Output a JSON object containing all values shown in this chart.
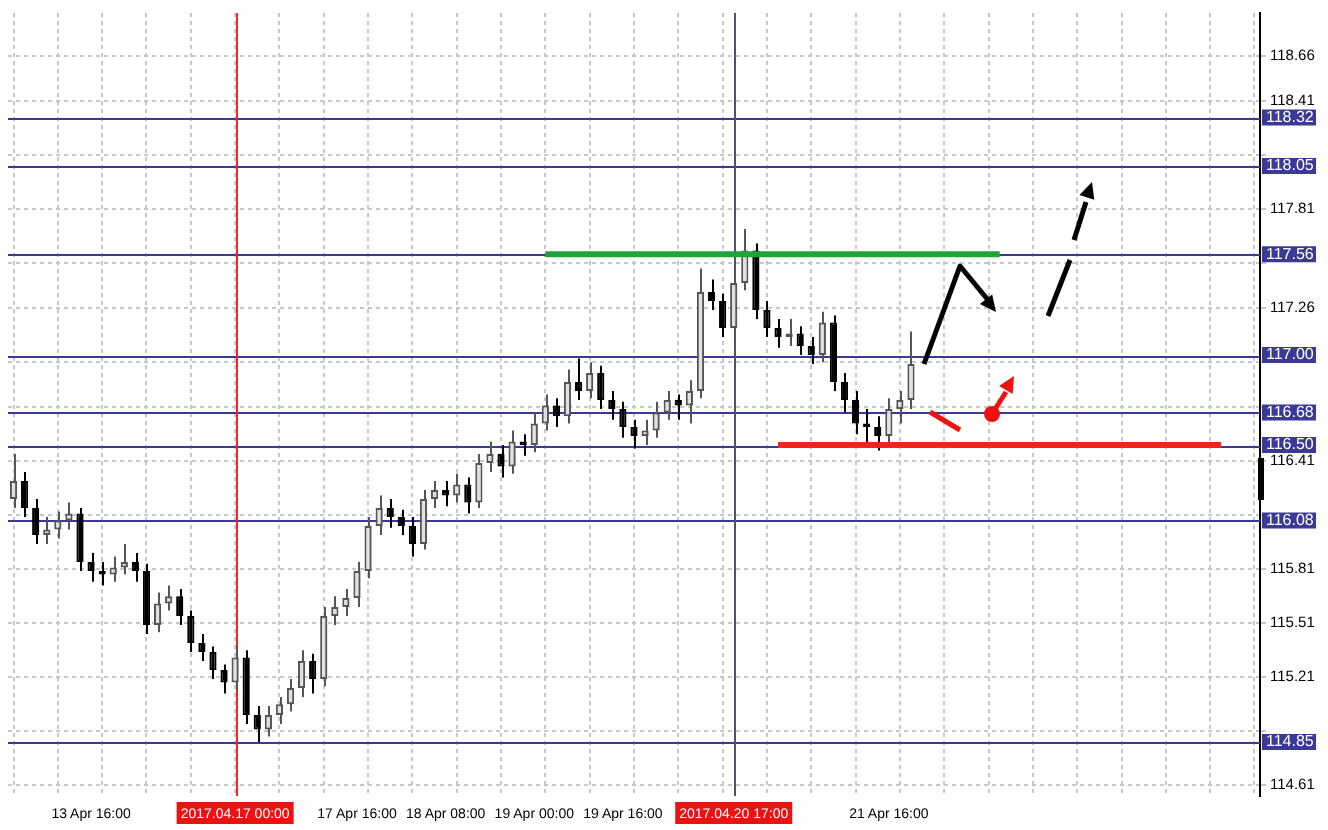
{
  "chart_data": {
    "type": "candlestick",
    "colors": [
      "#555555",
      "#000000",
      "#000000",
      "#555555",
      "#555555",
      "#555555",
      "#000000",
      "#000000",
      "#000000",
      "#555555",
      "#555555",
      "#000000",
      "#000000",
      "#555555",
      "#555555",
      "#000000",
      "#000000",
      "#000000",
      "#000000",
      "#000000",
      "#555555",
      "#000000",
      "#000000",
      "#555555",
      "#555555",
      "#555555",
      "#555555",
      "#000000",
      "#555555",
      "#555555",
      "#555555",
      "#555555",
      "#555555",
      "#555555",
      "#000000",
      "#000000",
      "#000000",
      "#555555",
      "#555555",
      "#000000",
      "#555555",
      "#000000",
      "#555555",
      "#555555",
      "#000000",
      "#555555",
      "#000000",
      "#555555",
      "#555555",
      "#000000",
      "#555555",
      "#000000",
      "#555555",
      "#000000",
      "#000000",
      "#000000",
      "#000000",
      "#555555",
      "#555555",
      "#555555",
      "#000000",
      "#555555",
      "#555555",
      "#000000",
      "#000000",
      "#555555",
      "#555555",
      "#000000",
      "#000000",
      "#000000",
      "#555555",
      "#000000",
      "#000000",
      "#555555",
      "#000000",
      "#000000",
      "#000000",
      "#000000",
      "#000000",
      "#555555",
      "#555555",
      "#555555",
      null,
      null,
      null,
      null,
      null,
      null,
      null,
      null,
      null,
      null,
      null,
      null,
      null,
      null,
      null,
      null,
      null,
      null,
      null,
      null,
      null,
      null,
      null,
      null,
      null,
      null,
      null,
      null,
      null,
      null,
      null
    ],
    "categories": [
      null,
      null,
      null,
      null,
      null,
      null,
      null,
      "13 Apr 16:00",
      null,
      null,
      null,
      null,
      null,
      null,
      null,
      null,
      null,
      null,
      null,
      null,
      "2017.04.17 00:00",
      null,
      null,
      null,
      null,
      null,
      null,
      null,
      null,
      null,
      null,
      "17 Apr 16:00",
      null,
      null,
      null,
      null,
      null,
      null,
      null,
      "18 Apr 08:00",
      null,
      null,
      null,
      null,
      null,
      null,
      null,
      "19 Apr 00:00",
      null,
      null,
      null,
      null,
      null,
      null,
      null,
      "19 Apr 16:00",
      null,
      null,
      null,
      null,
      null,
      null,
      null,
      null,
      null,
      "2017.04.20 17:00",
      null,
      null,
      null,
      null,
      null,
      null,
      null,
      null,
      null,
      null,
      null,
      null,
      null,
      "21 Apr 16:00",
      null,
      null,
      null,
      null,
      null,
      null,
      null,
      null,
      null,
      null,
      null,
      null,
      null,
      null,
      null,
      null,
      null,
      null,
      null,
      null,
      null,
      null,
      null,
      null,
      null,
      null,
      null,
      null,
      null,
      null,
      null,
      null,
      null
    ],
    "ohlc": [
      [
        116.2,
        116.45,
        116.15,
        116.3
      ],
      [
        116.3,
        116.35,
        116.1,
        116.15
      ],
      [
        116.15,
        116.2,
        115.95,
        116.0
      ],
      [
        116.0,
        116.1,
        115.95,
        116.03
      ],
      [
        116.03,
        116.13,
        115.98,
        116.08
      ],
      [
        116.08,
        116.18,
        116.03,
        116.12
      ],
      [
        116.12,
        116.15,
        115.8,
        115.85
      ],
      [
        115.85,
        115.9,
        115.74,
        115.8
      ],
      [
        115.8,
        115.85,
        115.72,
        115.78
      ],
      [
        115.78,
        115.88,
        115.74,
        115.82
      ],
      [
        115.82,
        115.95,
        115.78,
        115.85
      ],
      [
        115.85,
        115.9,
        115.74,
        115.8
      ],
      [
        115.8,
        115.84,
        115.45,
        115.5
      ],
      [
        115.5,
        115.68,
        115.46,
        115.62
      ],
      [
        115.62,
        115.72,
        115.58,
        115.66
      ],
      [
        115.66,
        115.7,
        115.5,
        115.55
      ],
      [
        115.55,
        115.58,
        115.35,
        115.4
      ],
      [
        115.4,
        115.45,
        115.3,
        115.35
      ],
      [
        115.35,
        115.38,
        115.2,
        115.25
      ],
      [
        115.25,
        115.28,
        115.12,
        115.18
      ],
      [
        115.18,
        115.38,
        115.14,
        115.32
      ],
      [
        115.32,
        115.36,
        114.95,
        115.0
      ],
      [
        115.0,
        115.05,
        114.85,
        114.92
      ],
      [
        114.92,
        115.05,
        114.88,
        115.0
      ],
      [
        115.0,
        115.1,
        114.95,
        115.06
      ],
      [
        115.06,
        115.2,
        115.02,
        115.15
      ],
      [
        115.15,
        115.36,
        115.1,
        115.3
      ],
      [
        115.3,
        115.34,
        115.12,
        115.2
      ],
      [
        115.2,
        115.6,
        115.16,
        115.55
      ],
      [
        115.55,
        115.66,
        115.5,
        115.6
      ],
      [
        115.6,
        115.7,
        115.55,
        115.65
      ],
      [
        115.65,
        115.85,
        115.6,
        115.8
      ],
      [
        115.8,
        116.1,
        115.76,
        116.05
      ],
      [
        116.05,
        116.22,
        116.0,
        116.15
      ],
      [
        116.15,
        116.2,
        116.04,
        116.1
      ],
      [
        116.1,
        116.14,
        116.0,
        116.05
      ],
      [
        116.05,
        116.1,
        115.88,
        115.95
      ],
      [
        115.95,
        116.25,
        115.92,
        116.2
      ],
      [
        116.2,
        116.3,
        116.15,
        116.25
      ],
      [
        116.25,
        116.3,
        116.16,
        116.22
      ],
      [
        116.22,
        116.34,
        116.18,
        116.28
      ],
      [
        116.28,
        116.32,
        116.12,
        116.18
      ],
      [
        116.18,
        116.45,
        116.15,
        116.4
      ],
      [
        116.4,
        116.52,
        116.35,
        116.45
      ],
      [
        116.45,
        116.5,
        116.32,
        116.38
      ],
      [
        116.38,
        116.58,
        116.34,
        116.52
      ],
      [
        116.52,
        116.56,
        116.44,
        116.5
      ],
      [
        116.5,
        116.68,
        116.46,
        116.62
      ],
      [
        116.62,
        116.78,
        116.58,
        116.72
      ],
      [
        116.72,
        116.76,
        116.6,
        116.66
      ],
      [
        116.66,
        116.92,
        116.62,
        116.85
      ],
      [
        116.85,
        116.98,
        116.75,
        116.8
      ],
      [
        116.8,
        116.96,
        116.76,
        116.9
      ],
      [
        116.9,
        116.94,
        116.7,
        116.75
      ],
      [
        116.75,
        116.8,
        116.64,
        116.7
      ],
      [
        116.7,
        116.74,
        116.54,
        116.6
      ],
      [
        116.6,
        116.64,
        116.48,
        116.55
      ],
      [
        116.55,
        116.64,
        116.5,
        116.58
      ],
      [
        116.58,
        116.74,
        116.54,
        116.68
      ],
      [
        116.68,
        116.8,
        116.64,
        116.75
      ],
      [
        116.75,
        116.78,
        116.64,
        116.72
      ],
      [
        116.72,
        116.86,
        116.62,
        116.8
      ],
      [
        116.8,
        117.48,
        116.76,
        117.35
      ],
      [
        117.35,
        117.42,
        117.25,
        117.3
      ],
      [
        117.3,
        117.34,
        117.1,
        117.15
      ],
      [
        117.15,
        117.5,
        117.1,
        117.4
      ],
      [
        117.4,
        117.7,
        117.36,
        117.58
      ],
      [
        117.58,
        117.62,
        117.2,
        117.25
      ],
      [
        117.25,
        117.3,
        117.1,
        117.15
      ],
      [
        117.15,
        117.2,
        117.04,
        117.1
      ],
      [
        117.1,
        117.2,
        117.05,
        117.12
      ],
      [
        117.12,
        117.16,
        117.0,
        117.05
      ],
      [
        117.05,
        117.1,
        116.95,
        117.0
      ],
      [
        117.0,
        117.24,
        116.96,
        117.18
      ],
      [
        117.18,
        117.22,
        116.8,
        116.85
      ],
      [
        116.85,
        116.9,
        116.68,
        116.75
      ],
      [
        116.75,
        116.8,
        116.56,
        116.62
      ],
      [
        116.62,
        116.7,
        116.5,
        116.6
      ],
      [
        116.6,
        116.66,
        116.47,
        116.55
      ],
      [
        116.55,
        116.76,
        116.5,
        116.7
      ],
      [
        116.7,
        116.8,
        116.62,
        116.75
      ],
      [
        116.75,
        117.13,
        116.7,
        116.95
      ],
      null,
      null,
      null,
      null,
      null,
      null,
      null,
      null,
      null,
      null,
      null,
      null,
      null,
      null,
      null,
      null,
      null,
      null,
      null,
      null,
      null,
      null,
      null,
      null,
      null,
      null,
      null,
      null,
      null,
      null,
      null
    ],
    "series": [
      {
        "type": "line",
        "color": "#1fa33a",
        "values": [
          null,
          null,
          null,
          null,
          null,
          null,
          null,
          null,
          null,
          null,
          null,
          null,
          null,
          null,
          null,
          null,
          null,
          null,
          null,
          null,
          null,
          null,
          null,
          null,
          null,
          null,
          null,
          null,
          null,
          null,
          null,
          null,
          null,
          null,
          null,
          null,
          null,
          null,
          null,
          null,
          null,
          null,
          null,
          null,
          null,
          null,
          null,
          null,
          117.56,
          null,
          null,
          null,
          null,
          null,
          null,
          null,
          null,
          null,
          null,
          null,
          null,
          null,
          null,
          null,
          null,
          null,
          null,
          null,
          null,
          null,
          null,
          null,
          null,
          null,
          null,
          null,
          null,
          null,
          null,
          null,
          null,
          null,
          null,
          null,
          null,
          null,
          null,
          null,
          null,
          117.56,
          null,
          null,
          null,
          null,
          null,
          null,
          null,
          null,
          null,
          null,
          null,
          null,
          null,
          null,
          null,
          null,
          null,
          null,
          null,
          null,
          null,
          null,
          null
        ]
      },
      {
        "type": "line",
        "color": "#ff2020",
        "values": [
          null,
          null,
          null,
          null,
          null,
          null,
          null,
          null,
          null,
          null,
          null,
          null,
          null,
          null,
          null,
          null,
          null,
          null,
          null,
          null,
          null,
          null,
          null,
          null,
          null,
          null,
          null,
          null,
          null,
          null,
          null,
          null,
          null,
          null,
          null,
          null,
          null,
          null,
          null,
          null,
          null,
          null,
          null,
          null,
          null,
          null,
          null,
          null,
          null,
          null,
          null,
          null,
          null,
          null,
          null,
          null,
          null,
          null,
          null,
          null,
          null,
          null,
          null,
          null,
          null,
          null,
          null,
          null,
          null,
          116.5,
          null,
          null,
          null,
          null,
          null,
          null,
          null,
          null,
          null,
          null,
          null,
          null,
          null,
          null,
          null,
          null,
          null,
          null,
          null,
          null,
          null,
          null,
          null,
          null,
          null,
          null,
          null,
          null,
          null,
          null,
          null,
          null,
          null,
          null,
          null,
          null,
          null,
          null,
          null,
          116.5,
          null,
          null,
          null
        ]
      }
    ],
    "ylim": [
      114.55,
      118.9
    ],
    "yticks": [
      114.61,
      {
        "value": 114.91,
        "label": null
      },
      115.21,
      115.51,
      115.81,
      {
        "value": 116.11,
        "label": null
      },
      116.41,
      {
        "value": 116.71,
        "label": null
      },
      {
        "value": 116.96,
        "label": null
      },
      117.26,
      {
        "value": 117.51,
        "label": null
      },
      117.81,
      {
        "value": 118.11,
        "label": null
      },
      118.41,
      118.66
    ],
    "grid": true,
    "ref_lines": [
      {
        "axis": "y",
        "value": 118.32,
        "label": "118.32",
        "color": "#3a3a96"
      },
      {
        "axis": "y",
        "value": 118.05,
        "label": "118.05",
        "color": "#3a3a96"
      },
      {
        "axis": "y",
        "value": 117.56,
        "label": "117.56",
        "color": "#3a3a96"
      },
      {
        "axis": "y",
        "value": 117.0,
        "label": "117.00",
        "color": "#3a3a96"
      },
      {
        "axis": "y",
        "value": 116.68,
        "label": "116.68",
        "color": "#3a3a96"
      },
      {
        "axis": "y",
        "value": 116.5,
        "label": "116.50",
        "color": "#3a3a96"
      },
      {
        "axis": "y",
        "value": 116.08,
        "label": "116.08",
        "color": "#3a3a96"
      },
      {
        "axis": "y",
        "value": 114.85,
        "label": "114.85",
        "color": "#3a3a96"
      },
      {
        "axis": "x",
        "value": "2017.04.17 00:00",
        "color": "#ff2020"
      },
      {
        "axis": "x",
        "value": "2017.04.20 17:00",
        "color": "#50506e"
      }
    ]
  }
}
